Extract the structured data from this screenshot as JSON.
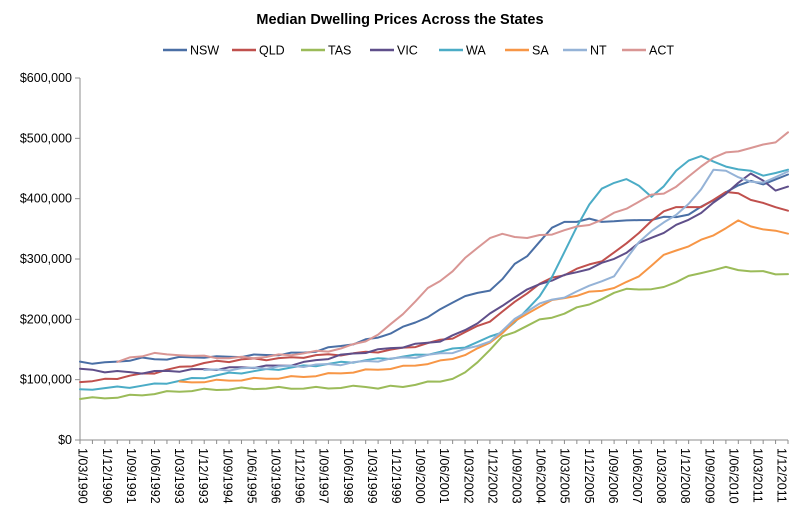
{
  "chart_data": {
    "type": "line",
    "title": "Median Dwelling Prices Across the States",
    "xlabel": "",
    "ylabel": "",
    "ylim": [
      0,
      600000
    ],
    "yticks": [
      0,
      100000,
      200000,
      300000,
      400000,
      500000,
      600000
    ],
    "ytick_labels": [
      "$0",
      "$100,000",
      "$200,000",
      "$300,000",
      "$400,000",
      "$500,000",
      "$600,000"
    ],
    "x_start": "1/03/1990",
    "x_step_months": 3,
    "xtick_labels": [
      "1/03/1990",
      "1/12/1990",
      "1/09/1991",
      "1/06/1992",
      "1/03/1993",
      "1/12/1993",
      "1/09/1994",
      "1/06/1995",
      "1/03/1996",
      "1/12/1996",
      "1/09/1997",
      "1/06/1998",
      "1/03/1999",
      "1/12/1999",
      "1/09/2000",
      "1/06/2001",
      "1/03/2002",
      "1/12/2002",
      "1/09/2003",
      "1/06/2004",
      "1/03/2005",
      "1/12/2005",
      "1/09/2006",
      "1/06/2007",
      "1/03/2008",
      "1/12/2008",
      "1/09/2009",
      "1/06/2010",
      "1/03/2011",
      "1/12/2011"
    ],
    "grid": false,
    "legend_position": "top",
    "series": [
      {
        "name": "NSW",
        "color": "#4a6fa5",
        "values": [
          130000,
          128000,
          127000,
          130000,
          133000,
          135000,
          134000,
          135000,
          136000,
          137000,
          138000,
          137000,
          138000,
          139000,
          140000,
          141000,
          142000,
          143000,
          145000,
          148000,
          152000,
          156000,
          160000,
          165000,
          170000,
          178000,
          186000,
          195000,
          205000,
          215000,
          228000,
          240000,
          242000,
          248000,
          268000,
          290000,
          305000,
          330000,
          350000,
          362000,
          363000,
          365000,
          362000,
          364000,
          362000,
          365000,
          366000,
          368000,
          370000,
          375000,
          385000,
          398000,
          412000,
          420000,
          430000,
          425000,
          430000,
          440000
        ]
      },
      {
        "name": "QLD",
        "color": "#c0504d",
        "values": [
          96000,
          97000,
          100000,
          103000,
          106000,
          109000,
          112000,
          116000,
          120000,
          124000,
          127000,
          130000,
          131000,
          133000,
          134000,
          134000,
          135000,
          136000,
          138000,
          140000,
          141000,
          142000,
          143000,
          145000,
          147000,
          149000,
          152000,
          156000,
          160000,
          165000,
          170000,
          178000,
          188000,
          198000,
          212000,
          228000,
          245000,
          258000,
          268000,
          275000,
          283000,
          290000,
          298000,
          310000,
          325000,
          345000,
          362000,
          378000,
          388000,
          385000,
          385000,
          400000,
          410000,
          408000,
          400000,
          392000,
          385000,
          380000
        ]
      },
      {
        "name": "TAS",
        "color": "#9bbb59",
        "values": [
          68000,
          69000,
          70000,
          71000,
          73000,
          75000,
          77000,
          79000,
          81000,
          82000,
          83000,
          84000,
          84500,
          85000,
          85500,
          86000,
          86000,
          86000,
          86000,
          86000,
          86500,
          87000,
          88000,
          89000,
          86000,
          88000,
          89000,
          92000,
          95000,
          98000,
          102000,
          110000,
          130000,
          150000,
          170000,
          180000,
          190000,
          198000,
          204000,
          210000,
          218000,
          226000,
          234000,
          242000,
          252000,
          250000,
          248000,
          255000,
          262000,
          270000,
          278000,
          282000,
          285000,
          283000,
          280000,
          278000,
          276000,
          275000
        ]
      },
      {
        "name": "VIC",
        "color": "#5f4f8a",
        "values": [
          118000,
          116000,
          114000,
          113000,
          112000,
          112000,
          113000,
          114000,
          115000,
          116000,
          117000,
          118000,
          119000,
          120000,
          121000,
          122000,
          123000,
          125000,
          128000,
          132000,
          136000,
          140000,
          143000,
          146000,
          149000,
          152000,
          155000,
          158000,
          161000,
          165000,
          172000,
          182000,
          195000,
          208000,
          222000,
          238000,
          248000,
          258000,
          266000,
          272000,
          278000,
          285000,
          292000,
          300000,
          312000,
          325000,
          335000,
          345000,
          355000,
          365000,
          378000,
          392000,
          408000,
          428000,
          440000,
          430000,
          415000,
          420000
        ]
      },
      {
        "name": "WA",
        "color": "#4bacc6",
        "values": [
          84000,
          85000,
          86000,
          87000,
          88000,
          90000,
          92000,
          95000,
          98000,
          101000,
          104000,
          107000,
          110000,
          112000,
          114000,
          116000,
          118000,
          120000,
          122000,
          124000,
          126000,
          128000,
          130000,
          132000,
          134000,
          136000,
          138000,
          140000,
          143000,
          146000,
          150000,
          155000,
          162000,
          170000,
          180000,
          195000,
          215000,
          240000,
          270000,
          310000,
          355000,
          390000,
          415000,
          428000,
          432000,
          420000,
          405000,
          420000,
          445000,
          465000,
          470000,
          460000,
          455000,
          448000,
          445000,
          440000,
          442000,
          448000
        ]
      },
      {
        "name": "SA",
        "color": "#f79646",
        "values": [
          null,
          null,
          null,
          null,
          null,
          null,
          null,
          null,
          95000,
          96000,
          97000,
          98000,
          99000,
          100000,
          101000,
          102000,
          103000,
          104000,
          105000,
          107000,
          109000,
          111000,
          113000,
          115000,
          117000,
          119000,
          121000,
          124000,
          127000,
          130000,
          135000,
          142000,
          150000,
          162000,
          178000,
          195000,
          210000,
          222000,
          230000,
          236000,
          240000,
          244000,
          248000,
          253000,
          260000,
          272000,
          290000,
          305000,
          315000,
          322000,
          330000,
          340000,
          352000,
          362000,
          355000,
          350000,
          345000,
          342000
        ]
      },
      {
        "name": "NT",
        "color": "#95b3d7",
        "values": [
          null,
          null,
          null,
          null,
          null,
          null,
          null,
          null,
          null,
          null,
          115000,
          116000,
          117000,
          118000,
          119000,
          120000,
          121000,
          122000,
          123000,
          124000,
          125000,
          126000,
          128000,
          130000,
          132000,
          134000,
          136000,
          138000,
          140000,
          143000,
          146000,
          150000,
          155000,
          165000,
          180000,
          200000,
          215000,
          225000,
          232000,
          238000,
          245000,
          255000,
          265000,
          270000,
          300000,
          330000,
          345000,
          360000,
          375000,
          390000,
          415000,
          450000,
          445000,
          435000,
          430000,
          425000,
          435000,
          445000
        ]
      },
      {
        "name": "ACT",
        "color": "#d99694",
        "values": [
          null,
          null,
          null,
          130000,
          135000,
          140000,
          145000,
          140000,
          142000,
          140000,
          138000,
          137000,
          136000,
          136000,
          137000,
          138000,
          140000,
          142000,
          144000,
          146000,
          148000,
          152000,
          157000,
          165000,
          175000,
          190000,
          210000,
          230000,
          250000,
          265000,
          280000,
          300000,
          320000,
          335000,
          340000,
          338000,
          335000,
          338000,
          342000,
          348000,
          352000,
          358000,
          365000,
          375000,
          385000,
          395000,
          405000,
          410000,
          420000,
          435000,
          455000,
          468000,
          475000,
          480000,
          484000,
          488000,
          495000,
          510000
        ]
      }
    ]
  }
}
